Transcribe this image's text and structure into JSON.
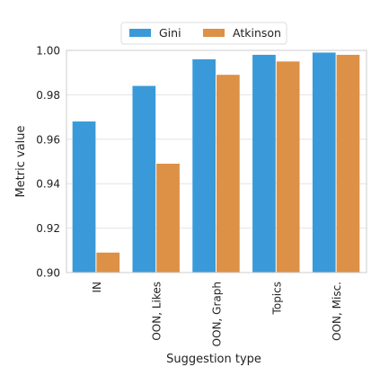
{
  "chart_data": {
    "type": "bar",
    "title": "",
    "xlabel": "Suggestion type",
    "ylabel": "Metric value",
    "categories": [
      "IN",
      "OON, Likes",
      "OON, Graph",
      "Topics",
      "OON, Misc."
    ],
    "series": [
      {
        "name": "Gini",
        "color": "#3a9ad9",
        "values": [
          0.968,
          0.984,
          0.996,
          0.998,
          0.999
        ]
      },
      {
        "name": "Atkinson",
        "color": "#dd9146",
        "values": [
          0.909,
          0.949,
          0.989,
          0.995,
          0.998
        ]
      }
    ],
    "ylim": [
      0.9,
      1.0
    ],
    "yticks": [
      "0.90",
      "0.92",
      "0.94",
      "0.96",
      "0.98",
      "1.00"
    ],
    "grid": true,
    "legend_position": "top-center"
  }
}
